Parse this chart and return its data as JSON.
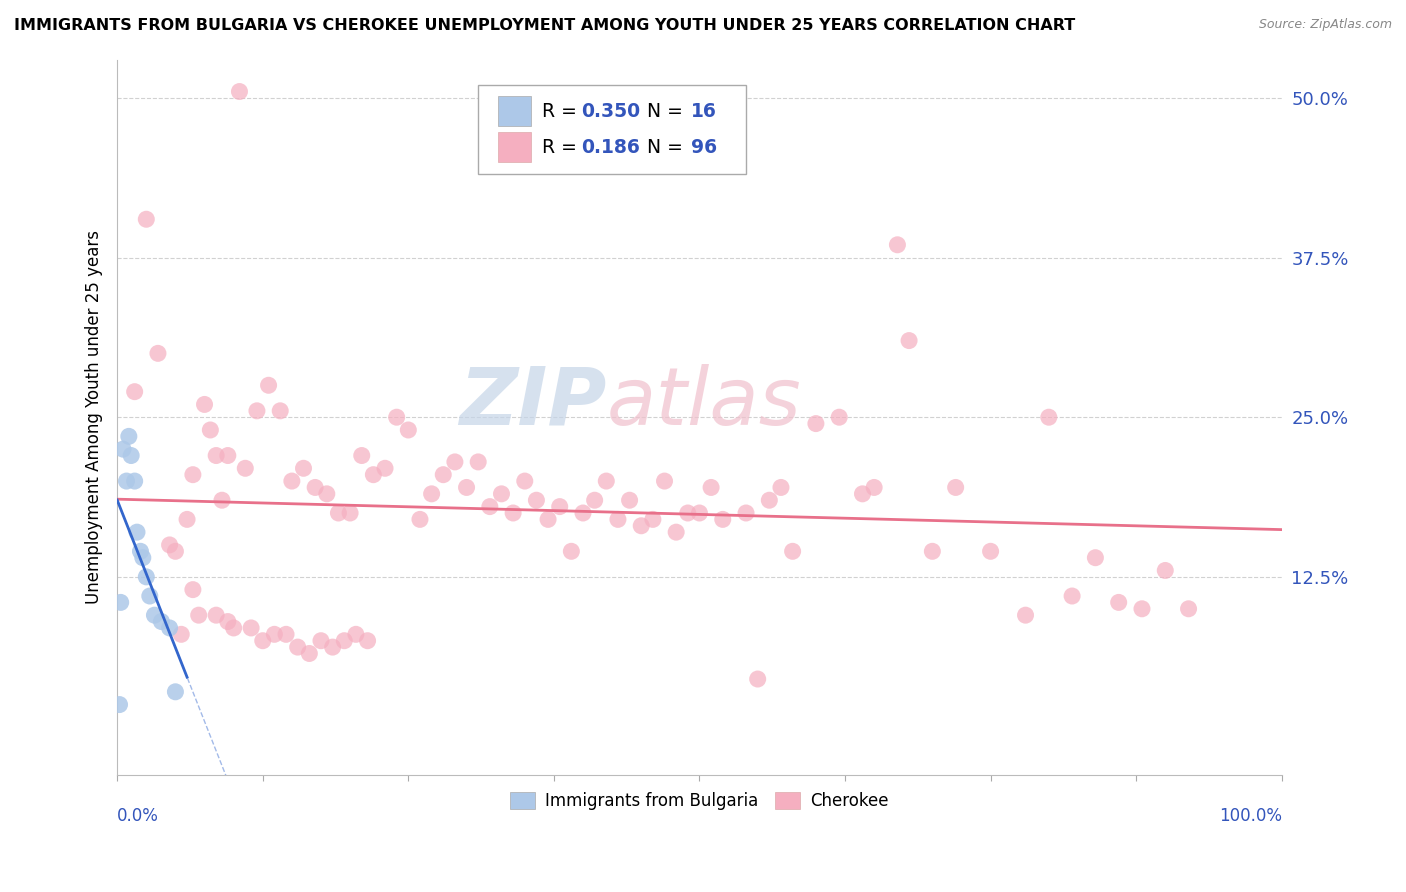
{
  "title": "IMMIGRANTS FROM BULGARIA VS CHEROKEE UNEMPLOYMENT AMONG YOUTH UNDER 25 YEARS CORRELATION CHART",
  "source": "Source: ZipAtlas.com",
  "ylabel": "Unemployment Among Youth under 25 years",
  "xlim": [
    0,
    100
  ],
  "ylim": [
    -3,
    53
  ],
  "ytick_vals": [
    0,
    12.5,
    25.0,
    37.5,
    50.0
  ],
  "ytick_labels": [
    "",
    "12.5%",
    "25.0%",
    "37.5%",
    "50.0%"
  ],
  "grid_color": "#cccccc",
  "bulgaria_color": "#adc8e8",
  "cherokee_color": "#f5afc0",
  "bulgaria_line_color": "#3366cc",
  "cherokee_line_color": "#e8708a",
  "legend_label1": "Immigrants from Bulgaria",
  "legend_label2": "Cherokee",
  "r_n_color": "#3355bb",
  "bulgaria_points": [
    [
      0.3,
      10.5
    ],
    [
      0.5,
      22.5
    ],
    [
      0.8,
      20.0
    ],
    [
      1.0,
      23.5
    ],
    [
      1.2,
      22.0
    ],
    [
      1.5,
      20.0
    ],
    [
      1.7,
      16.0
    ],
    [
      2.0,
      14.5
    ],
    [
      2.2,
      14.0
    ],
    [
      2.5,
      12.5
    ],
    [
      2.8,
      11.0
    ],
    [
      3.2,
      9.5
    ],
    [
      3.8,
      9.0
    ],
    [
      4.5,
      8.5
    ],
    [
      5.0,
      3.5
    ],
    [
      0.2,
      2.5
    ]
  ],
  "cherokee_points": [
    [
      1.5,
      27.0
    ],
    [
      2.5,
      40.5
    ],
    [
      3.5,
      30.0
    ],
    [
      4.5,
      15.0
    ],
    [
      5.0,
      14.5
    ],
    [
      6.0,
      17.0
    ],
    [
      6.5,
      20.5
    ],
    [
      7.5,
      26.0
    ],
    [
      8.0,
      24.0
    ],
    [
      8.5,
      22.0
    ],
    [
      9.0,
      18.5
    ],
    [
      9.5,
      22.0
    ],
    [
      10.5,
      50.5
    ],
    [
      11.0,
      21.0
    ],
    [
      12.0,
      25.5
    ],
    [
      13.0,
      27.5
    ],
    [
      14.0,
      25.5
    ],
    [
      15.0,
      20.0
    ],
    [
      16.0,
      21.0
    ],
    [
      17.0,
      19.5
    ],
    [
      18.0,
      19.0
    ],
    [
      19.0,
      17.5
    ],
    [
      20.0,
      17.5
    ],
    [
      21.0,
      22.0
    ],
    [
      22.0,
      20.5
    ],
    [
      23.0,
      21.0
    ],
    [
      24.0,
      25.0
    ],
    [
      25.0,
      24.0
    ],
    [
      26.0,
      17.0
    ],
    [
      27.0,
      19.0
    ],
    [
      28.0,
      20.5
    ],
    [
      29.0,
      21.5
    ],
    [
      30.0,
      19.5
    ],
    [
      31.0,
      21.5
    ],
    [
      32.0,
      18.0
    ],
    [
      33.0,
      19.0
    ],
    [
      34.0,
      17.5
    ],
    [
      35.0,
      20.0
    ],
    [
      36.0,
      18.5
    ],
    [
      37.0,
      17.0
    ],
    [
      38.0,
      18.0
    ],
    [
      39.0,
      14.5
    ],
    [
      40.0,
      17.5
    ],
    [
      41.0,
      18.5
    ],
    [
      42.0,
      20.0
    ],
    [
      43.0,
      17.0
    ],
    [
      44.0,
      18.5
    ],
    [
      45.0,
      16.5
    ],
    [
      46.0,
      17.0
    ],
    [
      47.0,
      20.0
    ],
    [
      48.0,
      16.0
    ],
    [
      49.0,
      17.5
    ],
    [
      50.0,
      17.5
    ],
    [
      51.0,
      19.5
    ],
    [
      52.0,
      17.0
    ],
    [
      54.0,
      17.5
    ],
    [
      55.0,
      4.5
    ],
    [
      56.0,
      18.5
    ],
    [
      57.0,
      19.5
    ],
    [
      58.0,
      14.5
    ],
    [
      60.0,
      24.5
    ],
    [
      62.0,
      25.0
    ],
    [
      64.0,
      19.0
    ],
    [
      65.0,
      19.5
    ],
    [
      67.0,
      38.5
    ],
    [
      68.0,
      31.0
    ],
    [
      70.0,
      14.5
    ],
    [
      72.0,
      19.5
    ],
    [
      75.0,
      14.5
    ],
    [
      78.0,
      9.5
    ],
    [
      80.0,
      25.0
    ],
    [
      82.0,
      11.0
    ],
    [
      84.0,
      14.0
    ],
    [
      86.0,
      10.5
    ],
    [
      88.0,
      10.0
    ],
    [
      90.0,
      13.0
    ],
    [
      92.0,
      10.0
    ],
    [
      6.5,
      11.5
    ],
    [
      7.0,
      9.5
    ],
    [
      8.5,
      9.5
    ],
    [
      9.5,
      9.0
    ],
    [
      10.0,
      8.5
    ],
    [
      11.5,
      8.5
    ],
    [
      12.5,
      7.5
    ],
    [
      13.5,
      8.0
    ],
    [
      14.5,
      8.0
    ],
    [
      15.5,
      7.0
    ],
    [
      16.5,
      6.5
    ],
    [
      17.5,
      7.5
    ],
    [
      18.5,
      7.0
    ],
    [
      19.5,
      7.5
    ],
    [
      20.5,
      8.0
    ],
    [
      21.5,
      7.5
    ],
    [
      5.5,
      8.0
    ]
  ],
  "xtick_positions": [
    0,
    12.5,
    25,
    37.5,
    50,
    62.5,
    75,
    87.5,
    100
  ]
}
